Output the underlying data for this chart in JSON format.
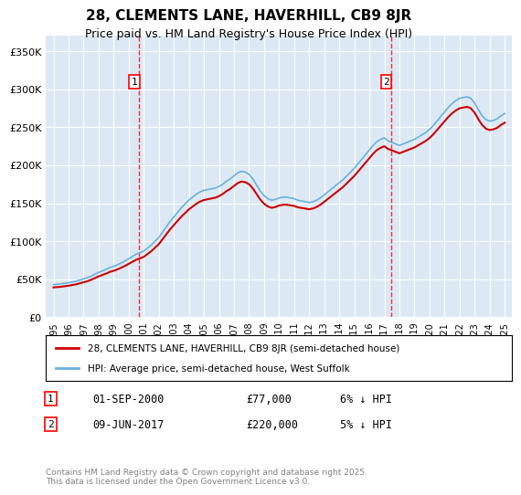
{
  "title": "28, CLEMENTS LANE, HAVERHILL, CB9 8JR",
  "subtitle": "Price paid vs. HM Land Registry's House Price Index (HPI)",
  "background_color": "#dce9f5",
  "plot_bg_color": "#dce9f5",
  "ylim": [
    0,
    370000
  ],
  "yticks": [
    0,
    50000,
    100000,
    150000,
    200000,
    250000,
    300000,
    350000
  ],
  "ytick_labels": [
    "£0",
    "£50K",
    "£100K",
    "£150K",
    "£200K",
    "£250K",
    "£300K",
    "£350K"
  ],
  "xlim_start": 1995,
  "xlim_end": 2025.5,
  "xticks": [
    1995,
    1996,
    1997,
    1998,
    1999,
    2000,
    2001,
    2002,
    2003,
    2004,
    2005,
    2006,
    2007,
    2008,
    2009,
    2010,
    2011,
    2012,
    2013,
    2014,
    2015,
    2016,
    2017,
    2018,
    2019,
    2020,
    2021,
    2022,
    2023,
    2024,
    2025
  ],
  "marker1_x": 2000.67,
  "marker1_y": 77000,
  "marker1_label": "1",
  "marker1_date": "01-SEP-2000",
  "marker1_price": "£77,000",
  "marker1_note": "6% ↓ HPI",
  "marker2_x": 2017.44,
  "marker2_y": 220000,
  "marker2_label": "2",
  "marker2_date": "09-JUN-2017",
  "marker2_price": "£220,000",
  "marker2_note": "5% ↓ HPI",
  "line1_color": "#cc0000",
  "line2_color": "#6ab0de",
  "line1_label": "28, CLEMENTS LANE, HAVERHILL, CB9 8JR (semi-detached house)",
  "line2_label": "HPI: Average price, semi-detached house, West Suffolk",
  "footer": "Contains HM Land Registry data © Crown copyright and database right 2025.\nThis data is licensed under the Open Government Licence v3.0.",
  "hpi_years": [
    1995,
    1995.25,
    1995.5,
    1995.75,
    1996,
    1996.25,
    1996.5,
    1996.75,
    1997,
    1997.25,
    1997.5,
    1997.75,
    1998,
    1998.25,
    1998.5,
    1998.75,
    1999,
    1999.25,
    1999.5,
    1999.75,
    2000,
    2000.25,
    2000.5,
    2000.75,
    2001,
    2001.25,
    2001.5,
    2001.75,
    2002,
    2002.25,
    2002.5,
    2002.75,
    2003,
    2003.25,
    2003.5,
    2003.75,
    2004,
    2004.25,
    2004.5,
    2004.75,
    2005,
    2005.25,
    2005.5,
    2005.75,
    2006,
    2006.25,
    2006.5,
    2006.75,
    2007,
    2007.25,
    2007.5,
    2007.75,
    2008,
    2008.25,
    2008.5,
    2008.75,
    2009,
    2009.25,
    2009.5,
    2009.75,
    2010,
    2010.25,
    2010.5,
    2010.75,
    2011,
    2011.25,
    2011.5,
    2011.75,
    2012,
    2012.25,
    2012.5,
    2012.75,
    2013,
    2013.25,
    2013.5,
    2013.75,
    2014,
    2014.25,
    2014.5,
    2014.75,
    2015,
    2015.25,
    2015.5,
    2015.75,
    2016,
    2016.25,
    2016.5,
    2016.75,
    2017,
    2017.25,
    2017.5,
    2017.75,
    2018,
    2018.25,
    2018.5,
    2018.75,
    2019,
    2019.25,
    2019.5,
    2019.75,
    2020,
    2020.25,
    2020.5,
    2020.75,
    2021,
    2021.25,
    2021.5,
    2021.75,
    2022,
    2022.25,
    2022.5,
    2022.75,
    2023,
    2023.25,
    2023.5,
    2023.75,
    2024,
    2024.25,
    2024.5,
    2024.75,
    2025
  ],
  "hpi_values": [
    43000,
    43500,
    44000,
    44800,
    45500,
    46500,
    47500,
    49000,
    50500,
    52000,
    54000,
    56500,
    59000,
    61000,
    63000,
    65500,
    67000,
    69000,
    71500,
    74000,
    77000,
    80000,
    83000,
    85000,
    87000,
    91000,
    95000,
    100000,
    105000,
    112000,
    119000,
    126000,
    132000,
    138000,
    144000,
    149000,
    154000,
    158000,
    162000,
    165000,
    167000,
    168000,
    169000,
    170000,
    172000,
    175000,
    179000,
    182000,
    186000,
    190000,
    192000,
    191000,
    188000,
    182000,
    174000,
    166000,
    160000,
    156000,
    154000,
    155000,
    157000,
    158000,
    158000,
    157000,
    156000,
    154000,
    153000,
    152000,
    151000,
    152000,
    154000,
    157000,
    161000,
    165000,
    169000,
    173000,
    177000,
    181000,
    186000,
    191000,
    196000,
    202000,
    208000,
    214000,
    220000,
    226000,
    231000,
    234000,
    236000,
    232000,
    230000,
    228000,
    226000,
    228000,
    230000,
    232000,
    234000,
    237000,
    240000,
    243000,
    247000,
    252000,
    258000,
    264000,
    270000,
    276000,
    281000,
    285000,
    288000,
    289000,
    290000,
    288000,
    282000,
    273000,
    265000,
    260000,
    258000,
    259000,
    261000,
    265000,
    268000
  ],
  "price_years": [
    1995.5,
    2000.67,
    2017.44
  ],
  "price_values": [
    42000,
    77000,
    220000
  ]
}
